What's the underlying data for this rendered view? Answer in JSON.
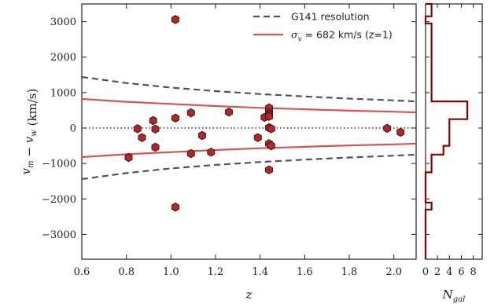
{
  "chart_data": [
    {
      "type": "scatter",
      "xlabel": "z",
      "ylabel": "v_m − v_w (km/s)",
      "xlim": [
        0.6,
        2.1
      ],
      "ylim": [
        -3700,
        3500
      ],
      "xticks": [
        0.6,
        0.8,
        1.0,
        1.2,
        1.4,
        1.6,
        1.8,
        2.0
      ],
      "xtick_labels": [
        "0.6",
        "0.8",
        "1.0",
        "1.2",
        "1.4",
        "1.6",
        "1.8",
        "2.0"
      ],
      "yticks": [
        -3000,
        -2000,
        -1000,
        0,
        1000,
        2000,
        3000
      ],
      "ytick_labels": [
        "−3000",
        "−2000",
        "−1000",
        "0",
        "1000",
        "2000",
        "3000"
      ],
      "grid": false,
      "legend": {
        "position": "top-right",
        "entries": [
          {
            "label": "G141 resolution",
            "style": "dashed",
            "color": "#4a5560"
          },
          {
            "label": "σ_v = 682 km/s (z=1)",
            "style": "solid",
            "color": "#d9534f"
          }
        ]
      },
      "zero_line": {
        "y": 0,
        "style": "dotted",
        "color": "#444444"
      },
      "curves": {
        "g141_resolution": {
          "z": [
            0.6,
            0.8,
            1.0,
            1.2,
            1.4,
            1.6,
            1.8,
            2.0,
            2.1
          ],
          "v": [
            1440,
            1270,
            1140,
            1040,
            960,
            890,
            830,
            780,
            750
          ]
        },
        "sigma_v": {
          "z": [
            0.6,
            0.8,
            1.0,
            1.2,
            1.4,
            1.6,
            1.8,
            2.0,
            2.1
          ],
          "v": [
            820,
            740,
            680,
            620,
            570,
            530,
            490,
            460,
            440
          ]
        }
      },
      "series": [
        {
          "marker_color": "#b0282a",
          "points": [
            {
              "x": 0.81,
              "y": -830
            },
            {
              "x": 0.85,
              "y": -20
            },
            {
              "x": 0.87,
              "y": -270
            },
            {
              "x": 0.92,
              "y": 210
            },
            {
              "x": 0.93,
              "y": -30
            },
            {
              "x": 0.93,
              "y": -540
            },
            {
              "x": 1.02,
              "y": 3060
            },
            {
              "x": 1.02,
              "y": 280
            },
            {
              "x": 1.02,
              "y": -2230
            },
            {
              "x": 1.09,
              "y": 430
            },
            {
              "x": 1.09,
              "y": -720
            },
            {
              "x": 1.14,
              "y": -210
            },
            {
              "x": 1.18,
              "y": -680
            },
            {
              "x": 1.26,
              "y": 450
            },
            {
              "x": 1.39,
              "y": -270
            },
            {
              "x": 1.42,
              "y": 300
            },
            {
              "x": 1.44,
              "y": 570
            },
            {
              "x": 1.44,
              "y": 430
            },
            {
              "x": 1.44,
              "y": 380
            },
            {
              "x": 1.44,
              "y": 330
            },
            {
              "x": 1.44,
              "y": 10
            },
            {
              "x": 1.45,
              "y": -20
            },
            {
              "x": 1.44,
              "y": -440
            },
            {
              "x": 1.45,
              "y": -500
            },
            {
              "x": 1.44,
              "y": -1180
            },
            {
              "x": 1.97,
              "y": -10
            },
            {
              "x": 2.03,
              "y": -120
            }
          ]
        }
      ]
    },
    {
      "type": "histogram",
      "orientation": "horizontal",
      "xlabel": "N_gal",
      "xlim": [
        0,
        9.5
      ],
      "xticks": [
        0,
        2,
        4,
        6,
        8
      ],
      "xtick_labels": [
        "0",
        "2",
        "4",
        "6",
        "8"
      ],
      "bin_edges": [
        -3700,
        -2300,
        -2100,
        -1250,
        -750,
        -500,
        250,
        750,
        2950,
        3150,
        3500
      ],
      "counts": [
        0,
        1,
        0,
        1,
        3,
        4,
        7,
        1,
        0,
        1
      ],
      "color": "#8b0000"
    }
  ]
}
